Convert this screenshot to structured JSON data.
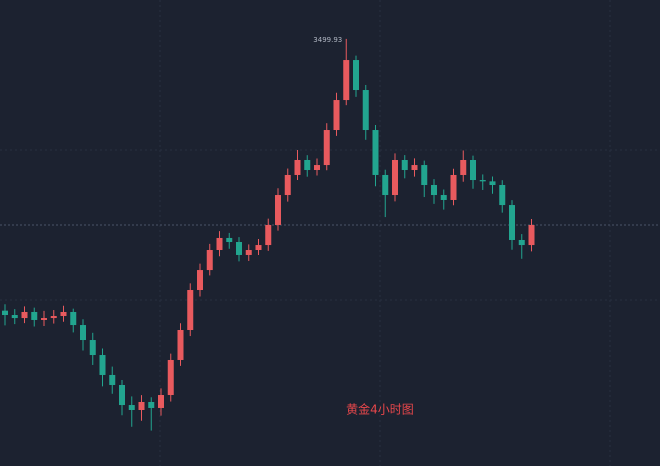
{
  "chart_data": {
    "type": "candlestick",
    "annotation": "黄金4小时图",
    "open": [
      3150.0,
      3144.4,
      3140.5,
      3148.3,
      3138.0,
      3140.5,
      3143.1,
      3148.3,
      3131.5,
      3112.2,
      3092.9,
      3067.2,
      3054.3,
      3028.5,
      3022.1,
      3032.4,
      3024.7,
      3041.4,
      3086.5,
      3125.1,
      3176.6,
      3202.3,
      3228.1,
      3243.6,
      3238.4,
      3221.7,
      3228.1,
      3234.5,
      3260.3,
      3298.9,
      3324.7,
      3344.0,
      3331.1,
      3337.5,
      3382.6,
      3421.2,
      3472.7,
      3434.1,
      3382.6,
      3324.7,
      3298.9,
      3344.0,
      3331.1,
      3337.5,
      3311.8,
      3298.9,
      3292.5,
      3324.7,
      3344.0,
      3318.2,
      3316.5,
      3311.8,
      3286.0,
      3241.0,
      3234.5
    ],
    "high": [
      3158.2,
      3152.0,
      3155.6,
      3153.9,
      3149.7,
      3150.8,
      3156.4,
      3152.6,
      3139.0,
      3121.5,
      3101.3,
      3078.0,
      3060.8,
      3039.6,
      3041.2,
      3038.5,
      3049.9,
      3094.7,
      3133.8,
      3185.2,
      3210.6,
      3236.0,
      3252.4,
      3250.1,
      3244.7,
      3235.3,
      3242.2,
      3268.5,
      3307.6,
      3333.0,
      3356.8,
      3350.2,
      3345.9,
      3391.4,
      3430.5,
      3499.93,
      3478.4,
      3440.6,
      3389.0,
      3331.5,
      3352.6,
      3350.3,
      3346.1,
      3343.2,
      3319.4,
      3306.0,
      3332.8,
      3356.3,
      3349.7,
      3325.4,
      3322.8,
      3318.0,
      3292.3,
      3248.6,
      3268.1
    ],
    "low": [
      3131.0,
      3132.7,
      3133.9,
      3129.6,
      3130.2,
      3133.4,
      3135.8,
      3122.0,
      3098.7,
      3080.1,
      3052.6,
      3043.0,
      3015.4,
      3000.5,
      3008.3,
      2995.6,
      3014.8,
      3033.0,
      3078.9,
      3117.3,
      3168.2,
      3195.4,
      3220.0,
      3229.7,
      3213.5,
      3214.0,
      3221.6,
      3227.0,
      3253.1,
      3290.4,
      3318.2,
      3322.5,
      3324.0,
      3330.8,
      3375.1,
      3414.6,
      3425.3,
      3370.0,
      3310.2,
      3270.5,
      3290.7,
      3320.4,
      3322.6,
      3296.3,
      3287.5,
      3280.1,
      3285.7,
      3316.0,
      3306.9,
      3305.4,
      3300.6,
      3276.2,
      3228.4,
      3216.8,
      3226.3
    ],
    "close": [
      3144.4,
      3140.5,
      3148.3,
      3138.0,
      3140.5,
      3143.1,
      3148.3,
      3131.5,
      3112.2,
      3092.9,
      3067.2,
      3054.3,
      3028.5,
      3022.1,
      3032.4,
      3024.7,
      3041.4,
      3086.5,
      3125.1,
      3176.6,
      3202.3,
      3228.1,
      3243.6,
      3238.4,
      3221.7,
      3228.1,
      3234.5,
      3260.3,
      3298.9,
      3324.7,
      3344.0,
      3331.1,
      3337.5,
      3382.6,
      3421.2,
      3472.7,
      3434.1,
      3382.6,
      3324.7,
      3298.9,
      3344.0,
      3331.1,
      3337.5,
      3311.8,
      3298.9,
      3292.5,
      3324.7,
      3344.0,
      3318.2,
      3316.5,
      3311.8,
      3286.0,
      3241.0,
      3234.5,
      3260.3
    ],
    "ylim": [
      2950,
      3550
    ],
    "up_color": "#e85a5e",
    "down_color": "#22a58f"
  }
}
